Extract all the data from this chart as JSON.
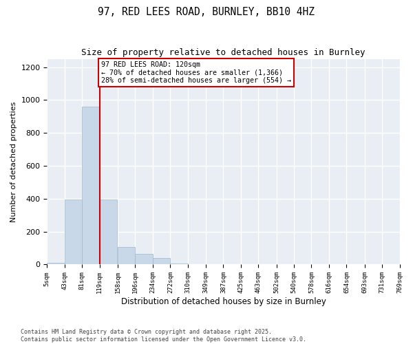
{
  "title1": "97, RED LEES ROAD, BURNLEY, BB10 4HZ",
  "title2": "Size of property relative to detached houses in Burnley",
  "xlabel": "Distribution of detached houses by size in Burnley",
  "ylabel": "Number of detached properties",
  "bar_color": "#c8d8e8",
  "bar_edgecolor": "#a0b8cc",
  "bg_color": "#e8eef4",
  "grid_color": "#ffffff",
  "tick_labels": [
    "5sqm",
    "43sqm",
    "81sqm",
    "119sqm",
    "158sqm",
    "196sqm",
    "234sqm",
    "272sqm",
    "310sqm",
    "349sqm",
    "387sqm",
    "425sqm",
    "463sqm",
    "502sqm",
    "540sqm",
    "578sqm",
    "616sqm",
    "654sqm",
    "693sqm",
    "731sqm",
    "769sqm"
  ],
  "bin_edges": [
    5,
    43,
    81,
    119,
    158,
    196,
    234,
    272,
    310,
    349,
    387,
    425,
    463,
    502,
    540,
    578,
    616,
    654,
    693,
    731,
    769
  ],
  "values": [
    10,
    395,
    960,
    395,
    105,
    65,
    40,
    7,
    0,
    0,
    4,
    0,
    0,
    0,
    0,
    0,
    0,
    0,
    0,
    0
  ],
  "ylim": [
    0,
    1250
  ],
  "yticks": [
    0,
    200,
    400,
    600,
    800,
    1000,
    1200
  ],
  "property_size": 120,
  "annotation_line1": "97 RED LEES ROAD: 120sqm",
  "annotation_line2": "← 70% of detached houses are smaller (1,366)",
  "annotation_line3": "28% of semi-detached houses are larger (554) →",
  "red_line_color": "#cc0000",
  "footer1": "Contains HM Land Registry data © Crown copyright and database right 2025.",
  "footer2": "Contains public sector information licensed under the Open Government Licence v3.0."
}
